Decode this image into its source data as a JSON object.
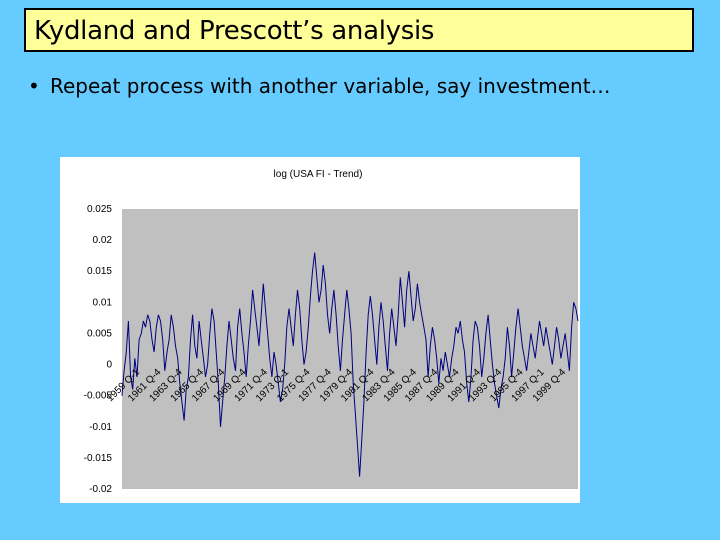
{
  "slide": {
    "title": "Kydland and Prescott’s analysis",
    "bullet": "Repeat process with another variable, say investment…"
  },
  "colors": {
    "background": "#66ccff",
    "title_box": "#ffff99",
    "plot_area": "#c0c0c0",
    "series": "#000080"
  },
  "chart_data": {
    "type": "line",
    "title": "log (USA FI - Trend)",
    "xlabel": "",
    "ylabel": "",
    "ylim": [
      -0.02,
      0.025
    ],
    "yticks": [
      "0.025",
      "0.02",
      "0.015",
      "0.01",
      "0.005",
      "0",
      "-0.005",
      "-0.01",
      "-0.015",
      "-0.02"
    ],
    "yvalues": [
      0.025,
      0.02,
      0.015,
      0.01,
      0.005,
      0,
      -0.005,
      -0.01,
      -0.015,
      -0.02
    ],
    "xticks": [
      "1959 Q-1",
      "1961 Q-4",
      "1963 Q-4",
      "1965 Q-4",
      "1967 Q-4",
      "1969 Q-4",
      "1971 Q-4",
      "1973 Q-1",
      "1975 Q-4",
      "1977 Q-4",
      "1979 Q-4",
      "1981 Q-4",
      "1983 Q-4",
      "1985 Q-4",
      "1987 Q-4",
      "1989 Q-4",
      "1991 Q-4",
      "1993 Q-4",
      "1995 Q-4",
      "1997 Q-1",
      "1999 Q-4"
    ],
    "grid": false,
    "legend": "none",
    "series": [
      {
        "values": [
          -0.005,
          -0.001,
          0.002,
          0.007,
          -0.002,
          -0.004,
          0.001,
          -0.002,
          0.004,
          0.005,
          0.007,
          0.006,
          0.008,
          0.007,
          0.004,
          0.002,
          0.006,
          0.008,
          0.007,
          0.004,
          -0.001,
          0.002,
          0.004,
          0.008,
          0.006,
          0.003,
          0.001,
          -0.003,
          -0.006,
          -0.009,
          -0.004,
          -0.002,
          0.004,
          0.008,
          0.003,
          0.001,
          0.007,
          0.004,
          0.001,
          -0.002,
          0.0,
          0.005,
          0.009,
          0.007,
          0.002,
          -0.003,
          -0.01,
          -0.006,
          -0.002,
          0.003,
          0.007,
          0.004,
          0.001,
          -0.001,
          0.006,
          0.009,
          0.005,
          0.002,
          -0.002,
          0.003,
          0.007,
          0.012,
          0.009,
          0.006,
          0.003,
          0.008,
          0.013,
          0.009,
          0.005,
          0.001,
          -0.002,
          0.002,
          0.0,
          -0.003,
          -0.006,
          -0.004,
          0.0,
          0.006,
          0.009,
          0.006,
          0.003,
          0.008,
          0.012,
          0.009,
          0.004,
          0.0,
          0.002,
          0.006,
          0.011,
          0.015,
          0.018,
          0.014,
          0.01,
          0.012,
          0.016,
          0.013,
          0.008,
          0.005,
          0.009,
          0.012,
          0.008,
          0.003,
          -0.001,
          0.004,
          0.008,
          0.012,
          0.009,
          0.005,
          -0.003,
          -0.008,
          -0.013,
          -0.018,
          -0.012,
          -0.006,
          0.002,
          0.008,
          0.011,
          0.008,
          0.004,
          0.0,
          0.006,
          0.01,
          0.007,
          0.003,
          -0.001,
          0.005,
          0.009,
          0.006,
          0.003,
          0.008,
          0.014,
          0.01,
          0.006,
          0.012,
          0.015,
          0.011,
          0.007,
          0.009,
          0.013,
          0.01,
          0.008,
          0.006,
          0.004,
          -0.002,
          0.003,
          0.006,
          0.004,
          0.001,
          -0.003,
          0.001,
          -0.001,
          0.002,
          0.0,
          -0.002,
          0.001,
          0.003,
          0.006,
          0.005,
          0.007,
          0.004,
          0.002,
          -0.003,
          -0.006,
          -0.002,
          0.004,
          0.007,
          0.006,
          0.003,
          -0.002,
          0.001,
          0.005,
          0.008,
          0.004,
          0.0,
          -0.003,
          -0.005,
          -0.007,
          -0.004,
          -0.002,
          0.001,
          0.006,
          0.003,
          -0.002,
          0.002,
          0.006,
          0.009,
          0.006,
          0.003,
          0.001,
          -0.001,
          0.002,
          0.005,
          0.003,
          0.001,
          0.004,
          0.007,
          0.005,
          0.003,
          0.006,
          0.004,
          0.002,
          0.0,
          0.003,
          0.006,
          0.004,
          0.001,
          0.003,
          0.005,
          0.002,
          -0.001,
          0.006,
          0.01,
          0.009,
          0.007
        ]
      }
    ]
  }
}
